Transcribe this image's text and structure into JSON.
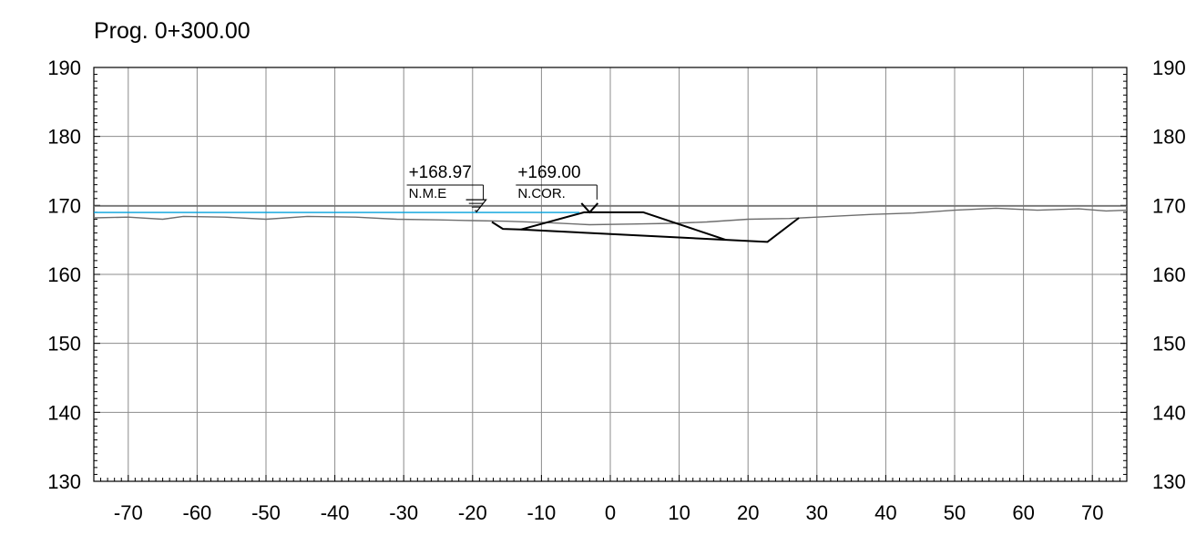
{
  "title": "Prog. 0+300.00",
  "chart_data": {
    "type": "line",
    "title": "Prog. 0+300.00",
    "xlabel": "",
    "ylabel": "",
    "xlim": [
      -75,
      75
    ],
    "ylim": [
      130,
      190
    ],
    "x_ticks": [
      -70,
      -60,
      -50,
      -40,
      -30,
      -20,
      -10,
      0,
      10,
      20,
      30,
      40,
      50,
      60,
      70
    ],
    "y_ticks": [
      190,
      180,
      170,
      160,
      150,
      140,
      130
    ],
    "grid": true,
    "annotations": [
      {
        "value": "+168.97",
        "label": "N.M.E",
        "x": -19.5,
        "y": 168.97
      },
      {
        "value": "+169.00",
        "label": "N.COR.",
        "x": -3,
        "y": 169.0
      }
    ],
    "series": [
      {
        "color": "#6e6e6e",
        "points": [
          [
            -75,
            168.2
          ],
          [
            -70,
            168.3
          ],
          [
            -65,
            168.0
          ],
          [
            -62,
            168.4
          ],
          [
            -56,
            168.3
          ],
          [
            -50,
            168.0
          ],
          [
            -44,
            168.4
          ],
          [
            -37,
            168.3
          ],
          [
            -31,
            168.0
          ],
          [
            -25,
            167.9
          ],
          [
            -20,
            167.8
          ],
          [
            -15,
            167.7
          ],
          [
            -9,
            167.5
          ],
          [
            -3,
            167.2
          ],
          [
            3,
            167.3
          ],
          [
            9,
            167.4
          ],
          [
            14,
            167.6
          ],
          [
            20,
            168.0
          ],
          [
            26,
            168.1
          ],
          [
            32,
            168.4
          ],
          [
            38,
            168.7
          ],
          [
            44,
            168.9
          ],
          [
            50,
            169.3
          ],
          [
            56,
            169.6
          ],
          [
            62,
            169.3
          ],
          [
            68,
            169.5
          ],
          [
            72,
            169.2
          ],
          [
            75,
            169.3
          ]
        ]
      },
      {
        "color": "#000000",
        "points": [
          [
            -17.2,
            167.6
          ],
          [
            -15.6,
            166.6
          ],
          [
            -13.0,
            166.5
          ],
          [
            22.8,
            164.7
          ],
          [
            27.4,
            168.2
          ]
        ]
      },
      {
        "color": "#000000",
        "points": [
          [
            -13.0,
            166.5
          ],
          [
            -3.8,
            169.0
          ],
          [
            4.8,
            169.0
          ],
          [
            16.8,
            165.0
          ]
        ]
      },
      {
        "color": "#00a0dc",
        "points": [
          [
            -75,
            168.97
          ],
          [
            -4.5,
            168.97
          ]
        ]
      },
      {
        "color": "#6e6e6e",
        "points": [
          [
            -75,
            169.9
          ],
          [
            75,
            169.9
          ]
        ]
      }
    ]
  }
}
